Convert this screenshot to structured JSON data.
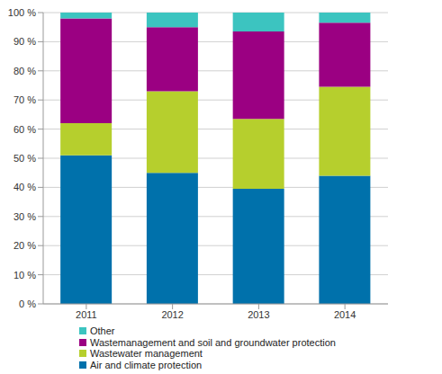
{
  "chart_data": {
    "type": "bar",
    "stacked": true,
    "grid": true,
    "legend": "bottom",
    "categories": [
      "2011",
      "2012",
      "2013",
      "2014"
    ],
    "ylim": [
      0,
      100
    ],
    "yticks": [
      {
        "value": 0,
        "label": "0 %"
      },
      {
        "value": 10,
        "label": "10 %"
      },
      {
        "value": 20,
        "label": "20 %"
      },
      {
        "value": 30,
        "label": "30 %"
      },
      {
        "value": 40,
        "label": "40 %"
      },
      {
        "value": 50,
        "label": "50 %"
      },
      {
        "value": 60,
        "label": "60 %"
      },
      {
        "value": 70,
        "label": "70 %"
      },
      {
        "value": 80,
        "label": "80 %"
      },
      {
        "value": 90,
        "label": "90 %"
      },
      {
        "value": 100,
        "label": "100 %"
      }
    ],
    "series": [
      {
        "name": "Air and climate protection",
        "color": "#0071ab",
        "values": [
          51,
          45,
          39.5,
          44
        ]
      },
      {
        "name": "Wastewater management",
        "color": "#b6cf2d",
        "values": [
          11,
          28,
          24,
          30.5
        ]
      },
      {
        "name": "Wastemanagement and soil and groundwater protection",
        "color": "#9b0082",
        "values": [
          36,
          22,
          30,
          22
        ]
      },
      {
        "name": "Other",
        "color": "#3cc4c0",
        "values": [
          2,
          5,
          6.5,
          3.5
        ]
      }
    ]
  }
}
